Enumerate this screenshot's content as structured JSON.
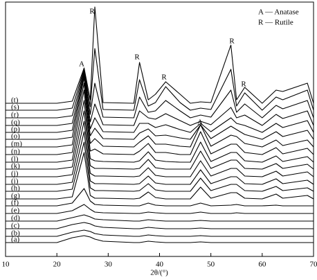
{
  "chart_data": {
    "type": "line",
    "x": [
      10,
      20,
      23,
      25.3,
      26.5,
      27.4,
      29,
      35,
      36.1,
      37.8,
      39.2,
      41.2,
      44,
      46,
      48,
      50,
      53.9,
      55,
      56.6,
      60,
      62.7,
      64,
      68.8,
      70
    ],
    "xlim": [
      10,
      70
    ],
    "xticks": [
      10,
      20,
      30,
      40,
      50,
      60,
      70
    ],
    "ylim": [
      0,
      367
    ],
    "xlabel": "2θ/(°)",
    "color": "#000000",
    "legend": [
      "A — Anatase",
      "R — Rutile"
    ],
    "annotations": [
      "A",
      "R",
      "R",
      "R",
      "A",
      "R",
      "R"
    ],
    "series": [
      {
        "name": "(a)",
        "values": [
          20,
          20,
          27,
          30,
          28,
          25,
          22,
          20,
          20,
          22,
          21,
          20,
          20,
          20,
          21,
          20,
          20,
          20,
          20,
          20,
          20,
          20,
          20,
          20
        ]
      },
      {
        "name": "(b)",
        "values": [
          29,
          29,
          35,
          38,
          36,
          33,
          31,
          29,
          29,
          31,
          30,
          29,
          29,
          29,
          30,
          29,
          29,
          29,
          29,
          29,
          29,
          29,
          29,
          29
        ]
      },
      {
        "name": "(c)",
        "values": [
          40,
          40,
          46,
          49,
          47,
          44,
          42,
          40,
          40,
          42,
          41,
          40,
          40,
          40,
          41,
          40,
          40,
          40,
          40,
          40,
          40,
          40,
          40,
          40
        ]
      },
      {
        "name": "(d)",
        "values": [
          51,
          51,
          56,
          60,
          57,
          54,
          53,
          51,
          51,
          53,
          52,
          51,
          51,
          51,
          52,
          51,
          51,
          51,
          51,
          51,
          51,
          51,
          51,
          51
        ]
      },
      {
        "name": "(e)",
        "values": [
          62,
          62,
          66,
          75,
          68,
          64,
          63,
          62,
          62,
          64,
          63,
          62,
          62,
          62,
          64,
          62,
          62,
          63,
          62,
          62,
          62,
          62,
          62,
          62
        ]
      },
      {
        "name": "(f)",
        "values": [
          73,
          73,
          77,
          98,
          80,
          75,
          74,
          73,
          73,
          77,
          74,
          73,
          73,
          73,
          77,
          73,
          74,
          75,
          73,
          73,
          74,
          73,
          73,
          73
        ]
      },
      {
        "name": "(g)",
        "values": [
          83,
          83,
          86,
          150,
          88,
          84,
          84,
          83,
          84,
          93,
          85,
          83,
          83,
          83,
          100,
          84,
          92,
          92,
          84,
          83,
          90,
          84,
          88,
          83
        ]
      },
      {
        "name": "(h)",
        "values": [
          94,
          94,
          97,
          165,
          99,
          95,
          95,
          94,
          95,
          105,
          96,
          94,
          94,
          94,
          113,
          95,
          104,
          104,
          95,
          94,
          101,
          95,
          99,
          94
        ]
      },
      {
        "name": "(i)",
        "values": [
          104,
          104,
          107,
          180,
          109,
          105,
          105,
          104,
          105,
          116,
          106,
          104,
          104,
          104,
          125,
          105,
          115,
          115,
          105,
          104,
          112,
          105,
          110,
          104
        ]
      },
      {
        "name": "(j)",
        "values": [
          115,
          115,
          118,
          195,
          120,
          116,
          116,
          115,
          116,
          128,
          117,
          115,
          115,
          115,
          138,
          116,
          127,
          127,
          116,
          115,
          123,
          116,
          122,
          115
        ]
      },
      {
        "name": "(k)",
        "values": [
          126,
          126,
          129,
          210,
          131,
          127,
          127,
          126,
          127,
          140,
          128,
          126,
          126,
          126,
          152,
          127,
          139,
          139,
          127,
          126,
          134,
          127,
          133,
          126
        ]
      },
      {
        "name": "(l)",
        "values": [
          136,
          136,
          139,
          225,
          141,
          138,
          137,
          136,
          138,
          151,
          139,
          137,
          136,
          136,
          165,
          137,
          150,
          150,
          138,
          136,
          145,
          137,
          144,
          136
        ]
      },
      {
        "name": "(n)",
        "values": [
          147,
          147,
          150,
          240,
          152,
          155,
          148,
          147,
          152,
          163,
          150,
          150,
          147,
          147,
          180,
          148,
          162,
          162,
          150,
          147,
          157,
          148,
          156,
          147
        ]
      },
      {
        "name": "(m)",
        "values": [
          158,
          158,
          161,
          250,
          163,
          170,
          159,
          158,
          165,
          174,
          162,
          162,
          159,
          158,
          190,
          159,
          175,
          173,
          163,
          158,
          168,
          160,
          168,
          158
        ]
      },
      {
        "name": "(o)",
        "values": [
          169,
          169,
          172,
          258,
          174,
          185,
          170,
          169,
          178,
          184,
          174,
          175,
          171,
          169,
          190,
          170,
          188,
          183,
          176,
          169,
          180,
          173,
          182,
          169
        ]
      },
      {
        "name": "(p)",
        "values": [
          179,
          179,
          182,
          262,
          184,
          200,
          180,
          179,
          192,
          192,
          186,
          190,
          183,
          179,
          192,
          180,
          200,
          192,
          189,
          179,
          192,
          186,
          196,
          179
        ]
      },
      {
        "name": "(q)",
        "values": [
          189,
          189,
          192,
          265,
          194,
          220,
          190,
          189,
          210,
          200,
          198,
          206,
          196,
          189,
          195,
          190,
          215,
          200,
          204,
          189,
          205,
          199,
          210,
          189
        ]
      },
      {
        "name": "(r)",
        "values": [
          200,
          200,
          203,
          268,
          205,
          250,
          201,
          200,
          230,
          208,
          210,
          225,
          210,
          200,
          204,
          201,
          240,
          208,
          220,
          200,
          218,
          213,
          225,
          200
        ]
      },
      {
        "name": "(s)",
        "values": [
          211,
          211,
          214,
          270,
          216,
          300,
          212,
          211,
          255,
          217,
          222,
          245,
          222,
          211,
          214,
          212,
          270,
          217,
          236,
          211,
          230,
          226,
          240,
          211
        ]
      },
      {
        "name": "(t)",
        "values": [
          221,
          221,
          224,
          272,
          226,
          360,
          222,
          221,
          280,
          226,
          234,
          252,
          234,
          221,
          223,
          222,
          305,
          226,
          244,
          221,
          240,
          238,
          250,
          221
        ]
      }
    ]
  }
}
